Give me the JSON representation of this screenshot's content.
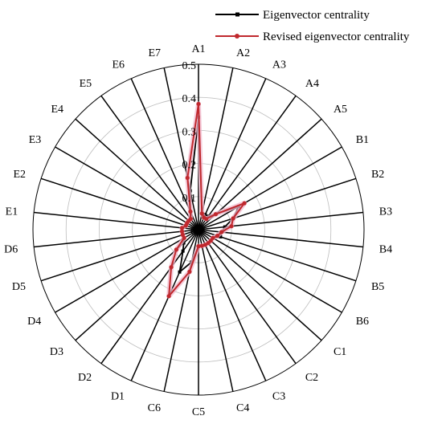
{
  "chart_data": {
    "type": "radar",
    "categories": [
      "A1",
      "A2",
      "A3",
      "A4",
      "A5",
      "B1",
      "B2",
      "B3",
      "B4",
      "B5",
      "B6",
      "C1",
      "C2",
      "C3",
      "C4",
      "C5",
      "C6",
      "D1",
      "D2",
      "D3",
      "D4",
      "D5",
      "D6",
      "E1",
      "E2",
      "E3",
      "E4",
      "E5",
      "E6",
      "E7"
    ],
    "rlim": [
      0,
      0.5
    ],
    "rticks": [
      "0",
      "0.1",
      "0.2",
      "0.3",
      "0.4",
      "0.5"
    ],
    "grid": true,
    "legend_position": "top-right",
    "series": [
      {
        "name": "Eigenvector centrality",
        "color": "#000000",
        "marker": "square",
        "values": [
          0.34,
          0.05,
          0.05,
          0.05,
          0.07,
          0.14,
          0.11,
          0.08,
          0.07,
          0.07,
          0.05,
          0.05,
          0.05,
          0.05,
          0.05,
          0.05,
          0.1,
          0.14,
          0.08,
          0.06,
          0.05,
          0.05,
          0.05,
          0.05,
          0.04,
          0.04,
          0.04,
          0.04,
          0.06,
          0.12
        ]
      },
      {
        "name": "Revised eigenvector centrality",
        "color": "#c0282d",
        "marker": "circle",
        "values": [
          0.38,
          0.05,
          0.04,
          0.04,
          0.07,
          0.16,
          0.11,
          0.1,
          0.07,
          0.06,
          0.05,
          0.05,
          0.05,
          0.05,
          0.05,
          0.05,
          0.13,
          0.22,
          0.14,
          0.09,
          0.05,
          0.05,
          0.05,
          0.05,
          0.04,
          0.04,
          0.04,
          0.04,
          0.06,
          0.16
        ]
      }
    ]
  }
}
